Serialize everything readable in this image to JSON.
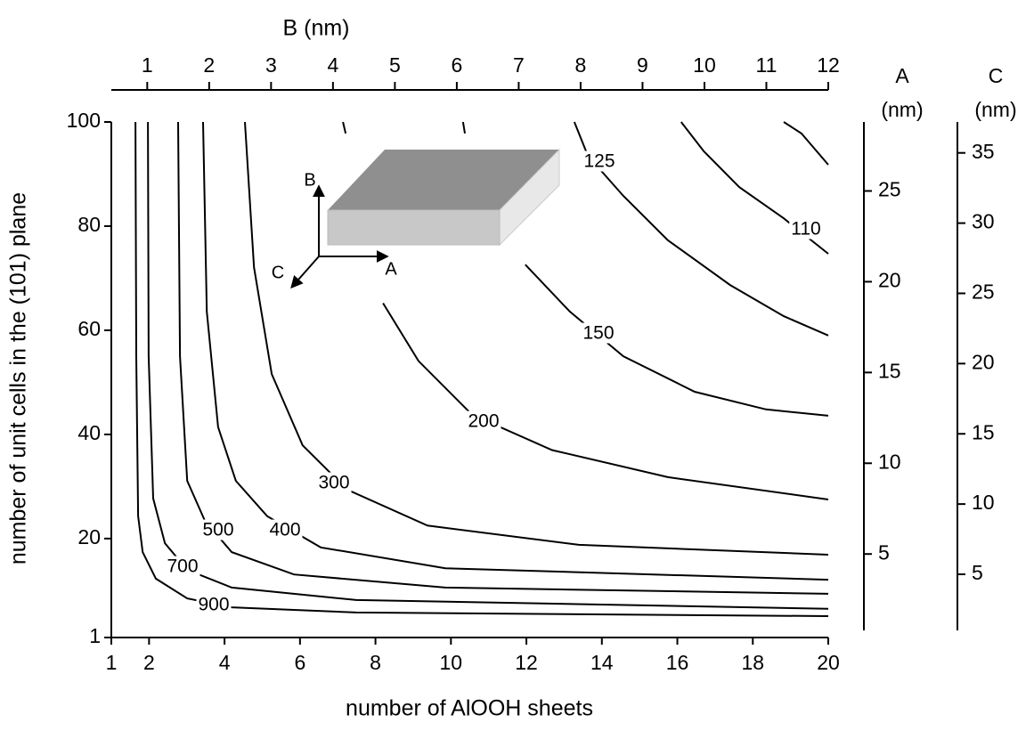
{
  "chart_data": {
    "type": "contour",
    "color": "#000000",
    "xlabel": "number of AlOOH sheets",
    "ylabel": "number of unit cells in the (101) plane",
    "xlim": [
      1,
      20
    ],
    "xticks": [
      1,
      2,
      4,
      6,
      8,
      10,
      12,
      14,
      16,
      18,
      20
    ],
    "ylim": [
      1,
      100
    ],
    "yticks": [
      1,
      20,
      40,
      60,
      80,
      100
    ],
    "top_axis": {
      "label": "B (nm)",
      "lim": [
        0.42,
        12
      ],
      "ticks": [
        1,
        2,
        3,
        4,
        5,
        6,
        7,
        8,
        9,
        10,
        11,
        12
      ]
    },
    "right_axes": [
      {
        "label_lines": [
          "A",
          "(nm)"
        ],
        "lim": [
          0.4,
          28.8
        ],
        "ticks": [
          5,
          10,
          15,
          20,
          25
        ]
      },
      {
        "label_lines": [
          "C",
          "(nm)"
        ],
        "lim": [
          0.5,
          37.2
        ],
        "ticks": [
          5,
          10,
          15,
          20,
          25,
          30,
          35
        ]
      }
    ],
    "series": [
      {
        "level": 900,
        "x": [
          1.64,
          1.66,
          1.71,
          1.83,
          2.18,
          3.01,
          4.19,
          7.49,
          20
        ],
        "y": [
          100,
          55.0,
          24.3,
          17.4,
          12.3,
          8.5,
          6.8,
          5.8,
          5.1
        ]
      },
      {
        "level": 700,
        "x": [
          1.97,
          1.99,
          2.11,
          2.42,
          3.01,
          4.19,
          7.49,
          20
        ],
        "y": [
          100,
          55,
          27.7,
          19.1,
          14.0,
          10.6,
          8.2,
          6.5
        ]
      },
      {
        "level": 500,
        "x": [
          2.77,
          2.82,
          3.01,
          3.48,
          4.19,
          5.84,
          9.85,
          20
        ],
        "y": [
          100,
          55,
          31.1,
          23.4,
          17.4,
          13.1,
          10.6,
          9.4
        ]
      },
      {
        "level": 400,
        "x": [
          3.43,
          3.53,
          3.83,
          4.3,
          5.13,
          6.55,
          9.85,
          20
        ],
        "y": [
          100,
          63.6,
          41.4,
          31.1,
          24.3,
          18.3,
          14.3,
          12.1
        ]
      },
      {
        "level": 300,
        "x": [
          4.54,
          4.78,
          5.25,
          6.07,
          7.25,
          9.38,
          13.39,
          20
        ],
        "y": [
          100,
          72.1,
          51.6,
          37.9,
          29.4,
          22.5,
          18.8,
          16.9
        ]
      },
      {
        "level": 200,
        "x": [
          7.14,
          7.21,
          null,
          8.2,
          9.14,
          10.56,
          12.68,
          15.75,
          20
        ],
        "y": [
          100,
          97.8,
          null,
          65.2,
          54.1,
          43.8,
          37.0,
          31.8,
          27.5
        ]
      },
      {
        "level": 150,
        "x": [
          10.32,
          10.37,
          null,
          11.97,
          13.15,
          14.57,
          16.46,
          18.35,
          20
        ],
        "y": [
          100,
          97.8,
          null,
          72.6,
          63.6,
          55.0,
          48.2,
          44.8,
          43.6
        ]
      },
      {
        "level": 125,
        "x": [
          13.27,
          13.63,
          14.57,
          15.75,
          17.4,
          18.82,
          20
        ],
        "y": [
          100,
          93.5,
          85.8,
          77.3,
          68.7,
          62.7,
          59.0
        ]
      },
      {
        "level": 110,
        "x": [
          16.1,
          16.7,
          17.64,
          18.82,
          20
        ],
        "y": [
          100,
          94.4,
          87.5,
          81.5,
          74.7
        ]
      },
      {
        "level": null,
        "x": [
          18.82,
          19.29,
          20
        ],
        "y": [
          100,
          97.8,
          91.8
        ]
      }
    ],
    "inset": {
      "labels": [
        "B",
        "C",
        "A"
      ]
    }
  }
}
